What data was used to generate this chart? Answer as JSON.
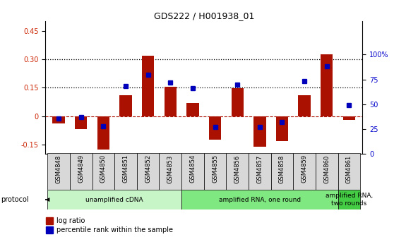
{
  "title": "GDS222 / H001938_01",
  "samples": [
    "GSM4848",
    "GSM4849",
    "GSM4850",
    "GSM4851",
    "GSM4852",
    "GSM4853",
    "GSM4854",
    "GSM4855",
    "GSM4856",
    "GSM4857",
    "GSM4858",
    "GSM4859",
    "GSM4860",
    "GSM4861"
  ],
  "log_ratio": [
    -0.04,
    -0.07,
    -0.175,
    0.11,
    0.32,
    0.155,
    0.07,
    -0.125,
    0.148,
    -0.16,
    -0.13,
    0.11,
    0.325,
    -0.02
  ],
  "percentile_rank": [
    36,
    37,
    28,
    68,
    80,
    72,
    66,
    27,
    70,
    27,
    32,
    73,
    88,
    49
  ],
  "proto_info": [
    {
      "start": 0,
      "end": 5,
      "label": "unamplified cDNA",
      "color": "#c8f5c8"
    },
    {
      "start": 6,
      "end": 12,
      "label": "amplified RNA, one round",
      "color": "#80e880"
    },
    {
      "start": 13,
      "end": 13,
      "label": "amplified RNA,\ntwo rounds",
      "color": "#44cc44"
    }
  ],
  "bar_color": "#aa1100",
  "dot_color": "#0000bb",
  "ylim_left": [
    -0.2,
    0.5
  ],
  "ylim_right": [
    0,
    133.33
  ],
  "yticks_left": [
    -0.15,
    0.0,
    0.15,
    0.3,
    0.45
  ],
  "yticks_left_labels": [
    "-0.15",
    "0",
    "0.15",
    "0.30",
    "0.45"
  ],
  "yticks_right": [
    0,
    25,
    50,
    75,
    100
  ],
  "yticks_right_labels": [
    "0",
    "25",
    "50",
    "75",
    "100%"
  ],
  "hlines": [
    0.15,
    0.3
  ],
  "figsize": [
    5.58,
    3.36
  ],
  "dpi": 100
}
